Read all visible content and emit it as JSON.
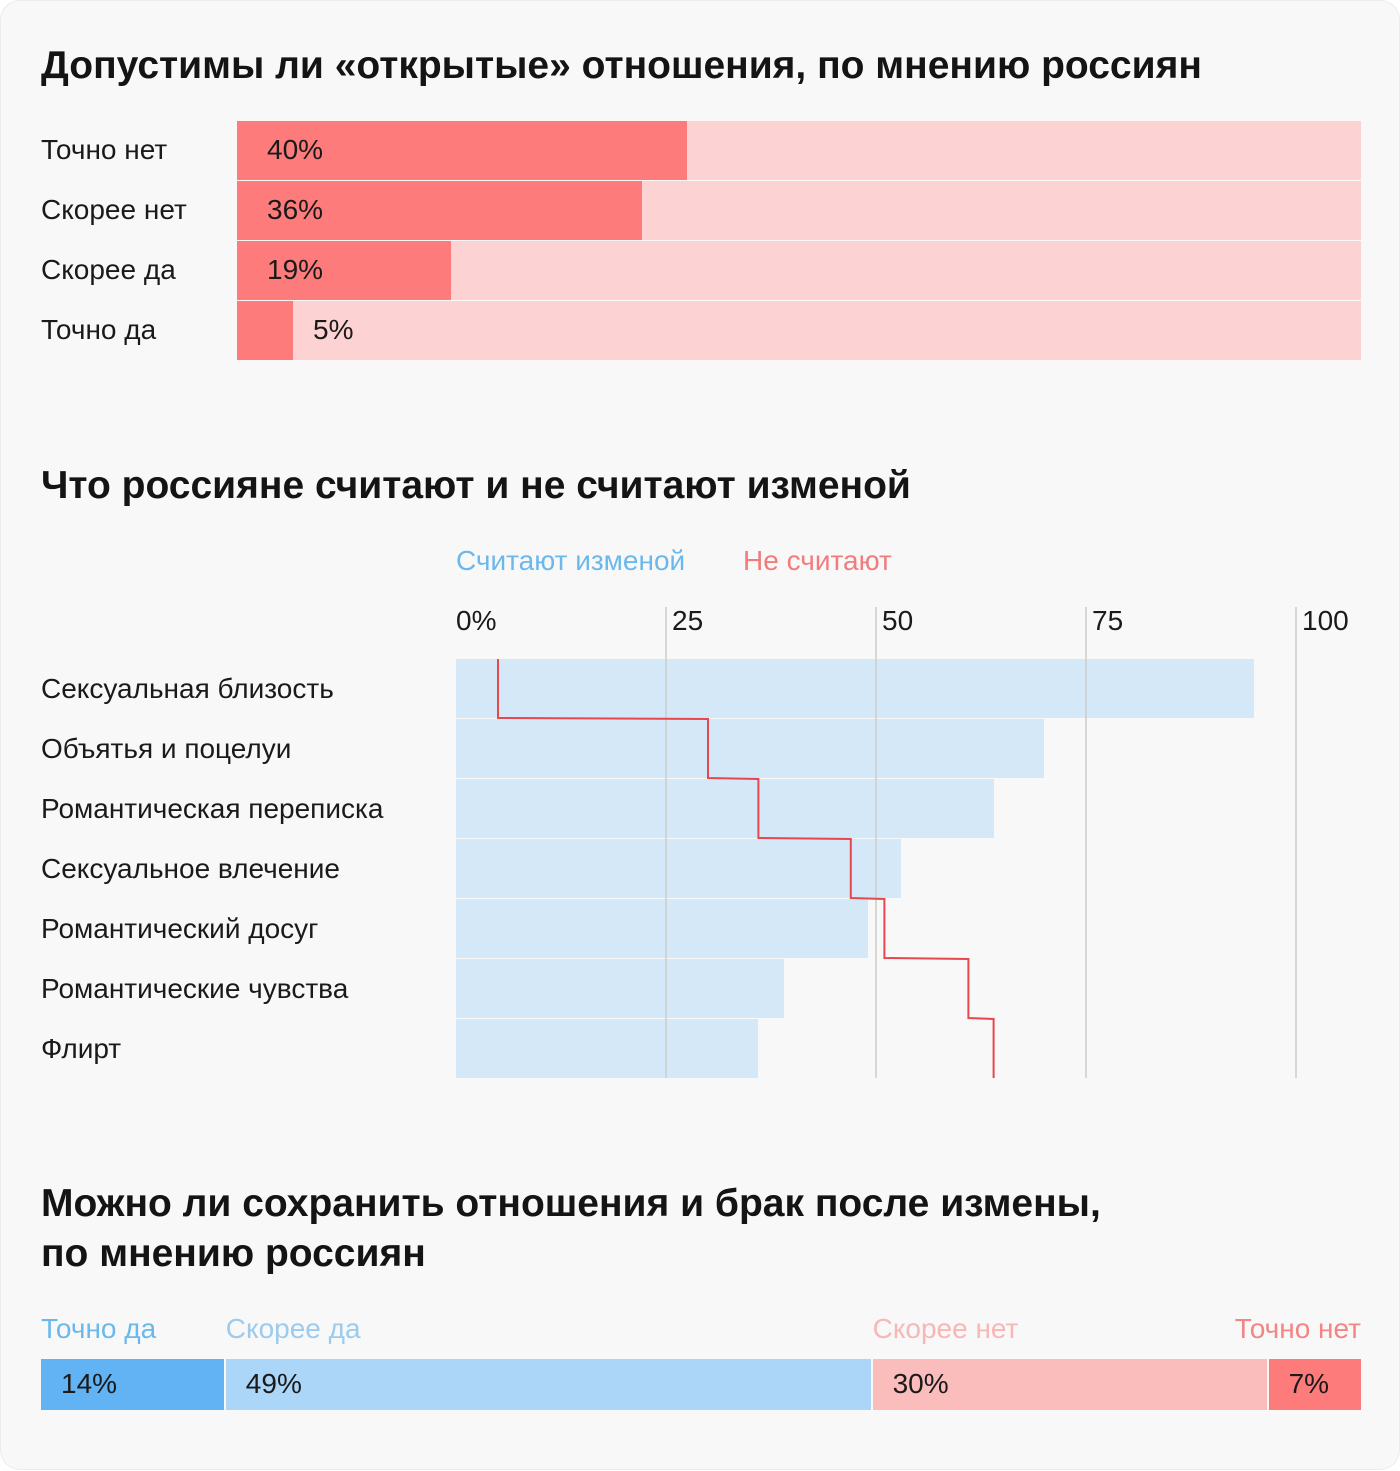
{
  "colors": {
    "red_strong": "#fd7b7b",
    "red_light": "#fcd2d3",
    "red_line": "#e5484d",
    "blue_light": "#d4e8f7",
    "blue_text": "#6bb8ec",
    "blue_strong": "#62b3f3",
    "blue_mid": "#acd6f7",
    "pink_mid": "#fbbcbc",
    "pink_text": "#f7b7b7",
    "gridline": "#cccccc",
    "title": "#141414"
  },
  "chart_data": [
    {
      "type": "bar",
      "title": "Допустимы ли «открытые» отношения, по мнению россиян",
      "unit": "%",
      "categories": [
        "Точно нет",
        "Скорее нет",
        "Скорее да",
        "Точно да"
      ],
      "values": [
        40,
        36,
        19,
        5
      ],
      "labels": [
        "40%",
        "36%",
        "19%",
        "5%"
      ]
    },
    {
      "type": "bar",
      "title": "Что россияне считают и не считают изменой",
      "legend": [
        "Считают изменой",
        "Не считают"
      ],
      "legend_placement": "top",
      "xlim": [
        0,
        100
      ],
      "ticks": [
        "0%",
        "25",
        "50",
        "75",
        "100"
      ],
      "grid": true,
      "categories": [
        "Сексуальная близость",
        "Объятья и поцелуи",
        "Романтическая переписка",
        "Сексуальное влечение",
        "Романтический досуг",
        "Романтические чувства",
        "Флирт"
      ],
      "series": [
        {
          "name": "Считают изменой",
          "values": [
            95,
            70,
            64,
            53,
            49,
            39,
            36
          ]
        },
        {
          "name": "Не считают",
          "values": [
            5,
            30,
            36,
            47,
            51,
            61,
            64
          ]
        }
      ]
    },
    {
      "type": "bar",
      "title": "Можно ли сохранить отношения и брак после измены,\nпо мнению россиян",
      "categories": [
        "Точно да",
        "Скорее да",
        "Скорее нет",
        "Точно нет"
      ],
      "values": [
        14,
        49,
        30,
        7
      ],
      "labels": [
        "14%",
        "49%",
        "30%",
        "7%"
      ]
    }
  ]
}
